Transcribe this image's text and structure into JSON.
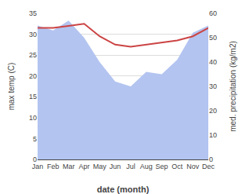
{
  "chart_data": {
    "type": "line",
    "categories": [
      "Jan",
      "Feb",
      "Mar",
      "Apr",
      "May",
      "Jun",
      "Jul",
      "Aug",
      "Sep",
      "Oct",
      "Nov",
      "Dec"
    ],
    "series": [
      {
        "type": "area",
        "axis": "y2",
        "color": "#b3c4f0",
        "values": [
          55,
          53,
          57,
          50,
          40,
          32,
          30,
          36,
          35,
          41,
          52,
          55
        ]
      },
      {
        "type": "line",
        "axis": "y",
        "color": "#cc4444",
        "values": [
          31.5,
          31.5,
          32.0,
          32.5,
          29.5,
          27.5,
          27.0,
          27.5,
          28.0,
          28.5,
          29.5,
          31.5
        ]
      }
    ],
    "xlabel": "date (month)",
    "ylabel": "max temp (C)",
    "y2label": "med. precipitation (kg/m2)",
    "ylim": [
      0,
      35
    ],
    "yticks": [
      0,
      5,
      10,
      15,
      20,
      25,
      30,
      35
    ],
    "y2lim": [
      0,
      60
    ],
    "y2ticks": [
      0,
      10,
      20,
      30,
      40,
      50,
      60
    ],
    "grid": true
  }
}
